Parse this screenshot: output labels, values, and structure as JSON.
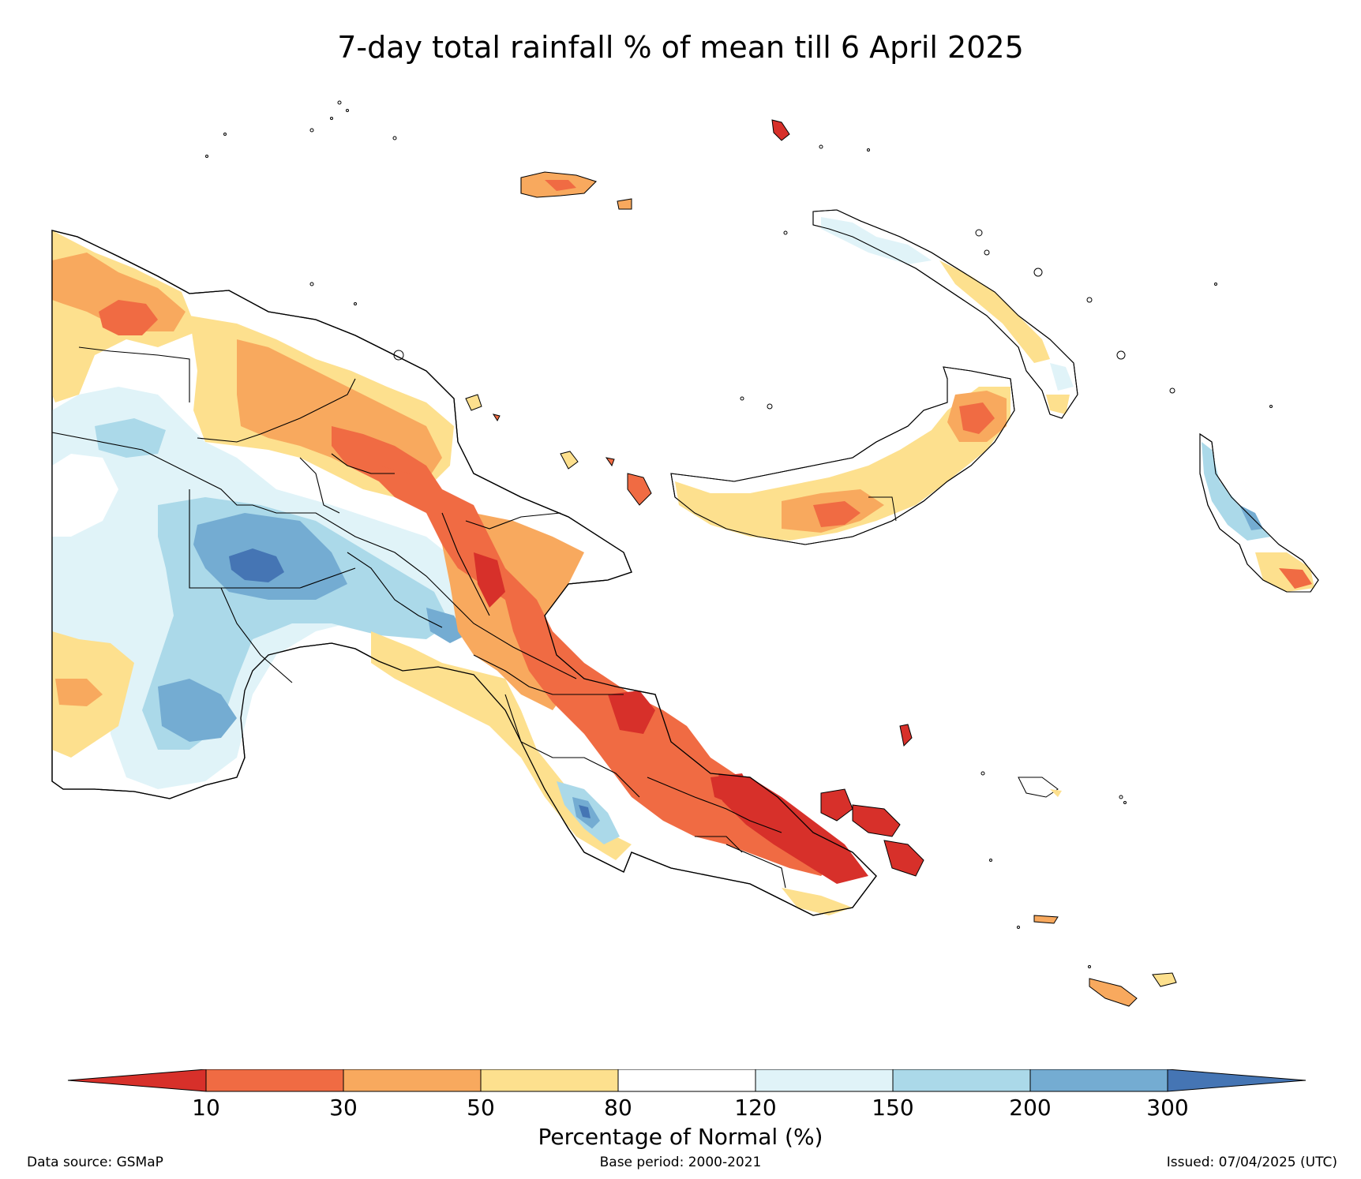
{
  "title": "7-day total rainfall % of mean till 6 April 2025",
  "colorbar": {
    "title": "Percentage of Normal (%)",
    "ticks": [
      "10",
      "30",
      "50",
      "80",
      "120",
      "150",
      "200",
      "300"
    ],
    "bins": [
      {
        "range": "<10",
        "color": "#d7302a"
      },
      {
        "range": "10-30",
        "color": "#f06b43"
      },
      {
        "range": "30-50",
        "color": "#f8a95e"
      },
      {
        "range": "50-80",
        "color": "#fde08e"
      },
      {
        "range": "80-120",
        "color": "#ffffff"
      },
      {
        "range": "120-150",
        "color": "#e0f3f8"
      },
      {
        "range": "150-200",
        "color": "#abd9e9"
      },
      {
        "range": "200-300",
        "color": "#74acd2"
      },
      {
        "range": ">300",
        "color": "#4575b4"
      }
    ]
  },
  "footer": {
    "source": "Data source: GSMaP",
    "base_period": "Base period: 2000-2021",
    "issued": "Issued: 07/04/2025 (UTC)"
  }
}
